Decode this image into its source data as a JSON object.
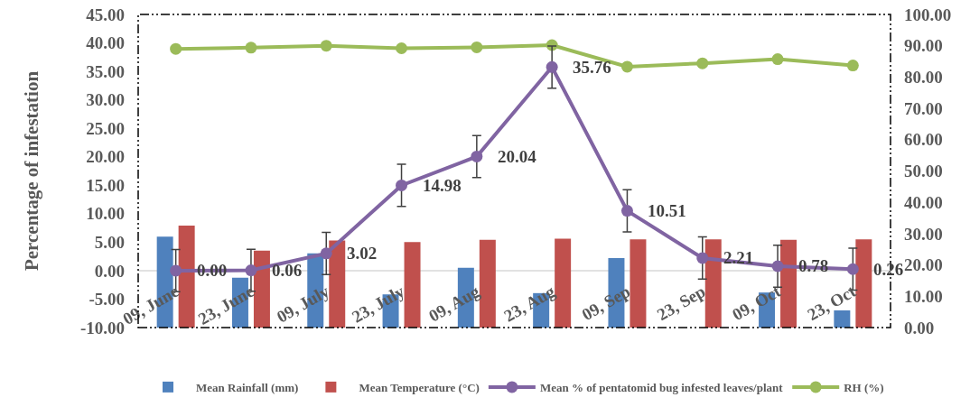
{
  "chart_data": {
    "type": "bar",
    "ylabel": "Percentage of infestation",
    "categories": [
      "09, June",
      "23, June",
      "09, July",
      "23, July",
      "09, Aug",
      "23, Aug",
      "09, Sep",
      "23, Sep",
      "09, Oct",
      "23, Oct"
    ],
    "series": [
      {
        "name": "Mean Rainfall (mm)",
        "color": "#4f81bd",
        "axis": "y2",
        "values": [
          29.0,
          15.9,
          23.7,
          10.6,
          19.1,
          11.0,
          22.2,
          0,
          11.2,
          5.5
        ]
      },
      {
        "name": "Mean Temperature (°C)",
        "color": "#c0504d",
        "axis": "y2",
        "values": [
          32.6,
          24.6,
          27.8,
          27.3,
          28.0,
          28.4,
          28.2,
          28.2,
          28.0,
          28.2
        ]
      },
      {
        "name": "Mean % of pentatomid bug infested leaves/plant",
        "type": "line",
        "color": "#8064a2",
        "values": [
          0,
          0.06,
          3.02,
          14.98,
          20.04,
          35.76,
          10.51,
          2.21,
          0.78,
          0.26
        ],
        "value_labels": [
          "0.00",
          "0.06",
          "3.02",
          "14.98",
          "20.04",
          "35.76",
          "10.51",
          "2.21",
          "0.78",
          "0.26"
        ],
        "errors": [
          3.7,
          3.7,
          3.7,
          3.7,
          3.7,
          3.7,
          3.7,
          3.7,
          3.7,
          3.7
        ]
      },
      {
        "name": "RH (%)",
        "type": "line",
        "color": "#9bbb59",
        "axis": "y2",
        "values": [
          89.0,
          89.4,
          90.0,
          89.2,
          89.5,
          90.2,
          83.3,
          84.4,
          85.7,
          83.7
        ]
      }
    ],
    "ylim": [
      -10,
      45
    ],
    "yticks": [
      {
        "value": -10,
        "label": "-10.00"
      },
      {
        "value": -5,
        "label": "-5.00"
      },
      {
        "value": 0,
        "label": "0.00"
      },
      {
        "value": 5,
        "label": "5.00"
      },
      {
        "value": 10,
        "label": "10.00"
      },
      {
        "value": 15,
        "label": "15.00"
      },
      {
        "value": 20,
        "label": "20.00"
      },
      {
        "value": 25,
        "label": "25.00"
      },
      {
        "value": 30,
        "label": "30.00"
      },
      {
        "value": 35,
        "label": "35.00"
      },
      {
        "value": 40,
        "label": "40.00"
      },
      {
        "value": 45,
        "label": "45.00"
      }
    ],
    "y2lim": [
      0,
      100
    ],
    "y2ticks": [
      {
        "value": 0,
        "label": "0.00"
      },
      {
        "value": 10,
        "label": "10.00"
      },
      {
        "value": 20,
        "label": "20.00"
      },
      {
        "value": 30,
        "label": "30.00"
      },
      {
        "value": 40,
        "label": "40.00"
      },
      {
        "value": 50,
        "label": "50.00"
      },
      {
        "value": 60,
        "label": "60.00"
      },
      {
        "value": 70,
        "label": "70.00"
      },
      {
        "value": 80,
        "label": "80.00"
      },
      {
        "value": 90,
        "label": "90.00"
      },
      {
        "value": 100,
        "label": "100.00"
      }
    ],
    "ref_lines": [
      {
        "axis": "y",
        "value": 0,
        "color": "#d9d9d9"
      }
    ],
    "grid": false,
    "legend": "bottom",
    "marker": "circle",
    "line_style": "solid"
  }
}
